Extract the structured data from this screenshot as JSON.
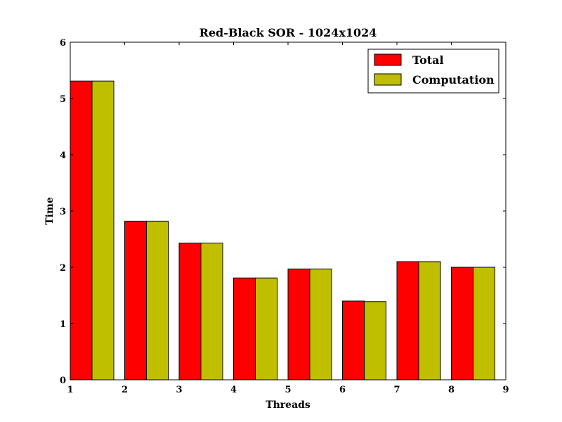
{
  "chart_data": {
    "type": "bar",
    "title": "Red-Black SOR - 1024x1024",
    "xlabel": "Threads",
    "ylabel": "Time",
    "xlim": [
      1,
      9
    ],
    "ylim": [
      0,
      6
    ],
    "x_ticks": [
      "1",
      "2",
      "3",
      "4",
      "5",
      "6",
      "7",
      "8",
      "9"
    ],
    "y_ticks": [
      "0",
      "1",
      "2",
      "3",
      "4",
      "5",
      "6"
    ],
    "categories": [
      1,
      2,
      3,
      4,
      5,
      6,
      7,
      8
    ],
    "series": [
      {
        "name": "Total",
        "color": "#ff0000",
        "values": [
          5.31,
          2.82,
          2.43,
          1.81,
          1.97,
          1.4,
          2.1,
          2.0
        ]
      },
      {
        "name": "Computation",
        "color": "#bfbf00",
        "values": [
          5.31,
          2.82,
          2.43,
          1.81,
          1.97,
          1.39,
          2.1,
          2.0
        ]
      }
    ],
    "grid": false,
    "legend_position": "top-right"
  }
}
